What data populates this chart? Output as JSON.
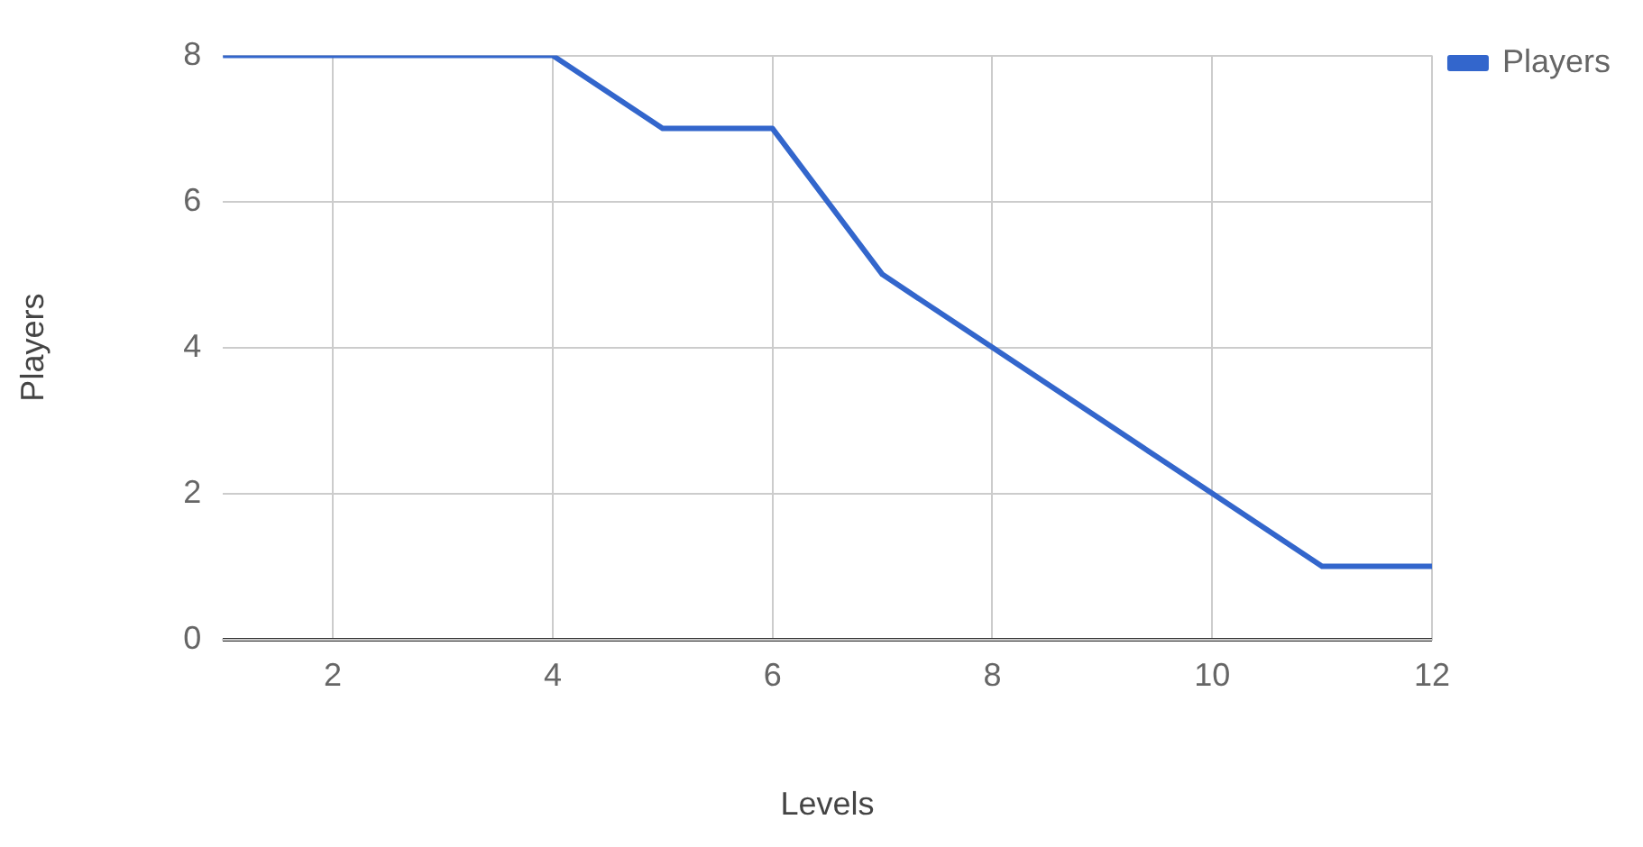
{
  "chart_data": {
    "type": "line",
    "xlabel": "Levels",
    "ylabel": "Players",
    "x": [
      1,
      2,
      3,
      4,
      5,
      6,
      7,
      8,
      9,
      10,
      11,
      12
    ],
    "series": [
      {
        "name": "Players",
        "color": "#3366cc",
        "values": [
          8,
          8,
          8,
          8,
          7,
          7,
          5,
          4,
          3,
          2,
          1,
          1
        ]
      }
    ],
    "xlim": [
      1,
      12
    ],
    "xticks": [
      2,
      4,
      6,
      8,
      10,
      12
    ],
    "ylim": [
      0,
      8
    ],
    "yticks": [
      0,
      2,
      4,
      6,
      8
    ],
    "grid": true,
    "legend": "top right",
    "marker": "none",
    "line_style": "solid"
  }
}
